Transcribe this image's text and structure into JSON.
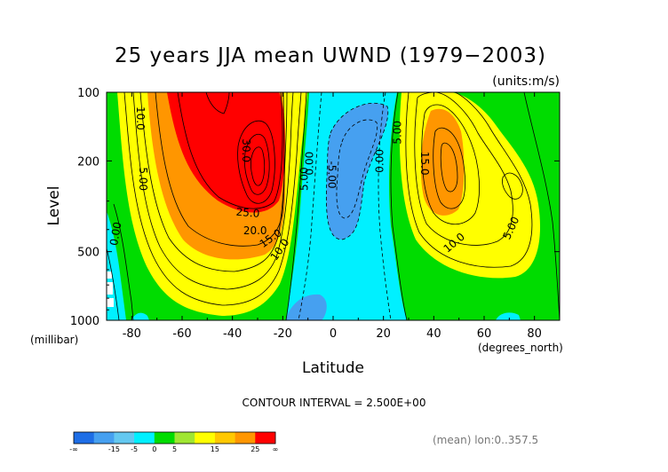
{
  "chart_data": {
    "type": "heatmap",
    "title": "25 years JJA mean UWND (1979−2003)",
    "units": "(units:m/s)",
    "xlabel": "Latitude",
    "xunits": "(degrees_north)",
    "ylabel": "Level",
    "yunits": "(millibar)",
    "xlim": [
      -90,
      90
    ],
    "ylim": [
      1000,
      100
    ],
    "xticks": [
      -80,
      -60,
      -40,
      -20,
      0,
      20,
      40,
      60,
      80
    ],
    "yticks": [
      100,
      200,
      500,
      1000
    ],
    "contour_interval_text": "CONTOUR INTERVAL = 2.500E+00",
    "contour_interval": 2.5,
    "averaging_text": "(mean) lon:0..357.5",
    "colorbar": {
      "labels": [
        "-∞",
        "-15",
        "-5",
        "0",
        "5",
        "15",
        "25",
        "∞"
      ],
      "colors": [
        "#1e6ee6",
        "#46a0f0",
        "#64c8f0",
        "#00f0ff",
        "#00dc00",
        "#a0e632",
        "#ffff00",
        "#ffc800",
        "#ff9600",
        "#ff0000"
      ]
    },
    "features": [
      {
        "name": "SH subtropical jet core",
        "lat": -30,
        "level": 200,
        "max_u": 32
      },
      {
        "name": "NH subtropical jet core",
        "lat": 43,
        "level": 200,
        "max_u": 17
      },
      {
        "name": "tropical easterlies",
        "lat": 0,
        "level": 200,
        "min_u": -8
      }
    ],
    "contour_labels": [
      {
        "text": "10.0",
        "lat": -78,
        "level": 130,
        "rot": 90
      },
      {
        "text": "5.00",
        "lat": -77,
        "level": 240,
        "rot": 90
      },
      {
        "text": "0.00",
        "lat": -85,
        "level": 420,
        "rot": -80
      },
      {
        "text": "30.0",
        "lat": -36,
        "level": 180,
        "rot": 90
      },
      {
        "text": "25.0",
        "lat": -34,
        "level": 350,
        "rot": 5
      },
      {
        "text": "20.0",
        "lat": -31,
        "level": 420,
        "rot": 0
      },
      {
        "text": "15.0",
        "lat": -24,
        "level": 450,
        "rot": -35
      },
      {
        "text": "10.0",
        "lat": -20,
        "level": 500,
        "rot": -55
      },
      {
        "text": "5.00",
        "lat": -10,
        "level": 240,
        "rot": -90
      },
      {
        "text": "0.00",
        "lat": -8,
        "level": 205,
        "rot": -90
      },
      {
        "text": "-5.00",
        "lat": -2,
        "level": 230,
        "rot": 90
      },
      {
        "text": "0.00",
        "lat": 20,
        "level": 200,
        "rot": -90
      },
      {
        "text": "5.00",
        "lat": 27,
        "level": 150,
        "rot": -90
      },
      {
        "text": "15.0",
        "lat": 35,
        "level": 205,
        "rot": 90
      },
      {
        "text": "10.0",
        "lat": 49,
        "level": 470,
        "rot": -40
      },
      {
        "text": "5.00",
        "lat": 72,
        "level": 400,
        "rot": -65
      }
    ]
  }
}
